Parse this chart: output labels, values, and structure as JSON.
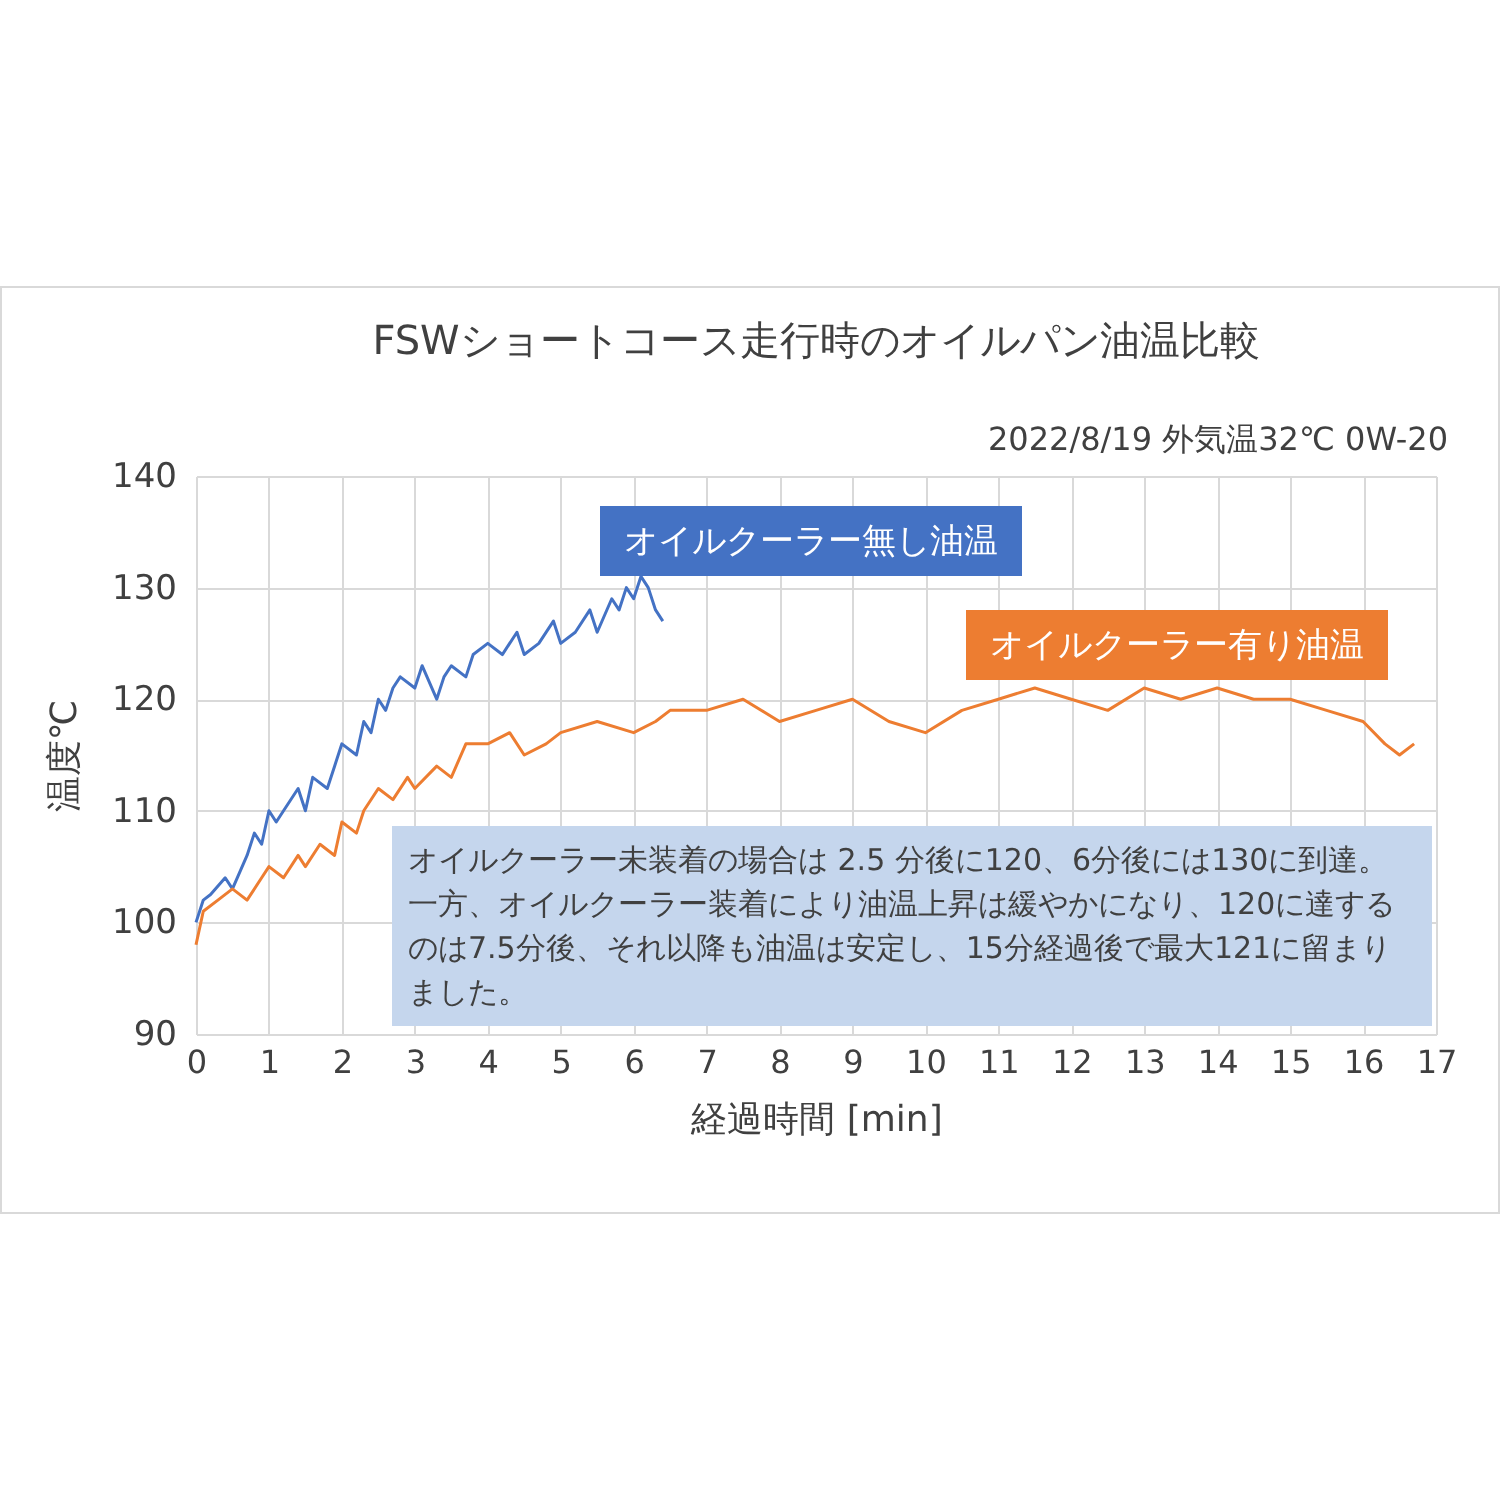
{
  "chart_data": {
    "type": "line",
    "title": "FSWショートコース走行時のオイルパン油温比較",
    "subtitle": "2022/8/19  外気温32℃  0W-20",
    "xlabel": "経過時間 [min]",
    "ylabel": "温度℃",
    "xlim": [
      0,
      17
    ],
    "xticks": [
      0,
      1,
      2,
      3,
      4,
      5,
      6,
      7,
      8,
      9,
      10,
      11,
      12,
      13,
      14,
      15,
      16,
      17
    ],
    "ylim": [
      90,
      140
    ],
    "yticks": [
      90,
      100,
      110,
      120,
      130,
      140
    ],
    "grid": true,
    "marker": "none",
    "line_style": "solid",
    "annotations": [
      "オイルクーラー未装着の場合は 2.5 分後に120、6分後には130に到達。一方、オイルクーラー装着により油温上昇は緩やかになり、120に達するのは7.5分後、それ以降も油温は安定し、15分経過後で最大121に留まりました。"
    ],
    "series": [
      {
        "name": "オイルクーラー無し油温",
        "color": "#4472c4",
        "x": [
          0,
          0.1,
          0.2,
          0.4,
          0.5,
          0.7,
          0.8,
          0.9,
          1.0,
          1.1,
          1.2,
          1.4,
          1.5,
          1.6,
          1.8,
          1.9,
          2.0,
          2.2,
          2.3,
          2.4,
          2.5,
          2.6,
          2.7,
          2.8,
          3.0,
          3.1,
          3.3,
          3.4,
          3.5,
          3.7,
          3.8,
          4.0,
          4.2,
          4.4,
          4.5,
          4.7,
          4.9,
          5.0,
          5.2,
          5.4,
          5.5,
          5.7,
          5.8,
          5.9,
          6.0,
          6.1,
          6.2,
          6.3,
          6.4
        ],
        "values": [
          100,
          102,
          102.5,
          104,
          103,
          106,
          108,
          107,
          110,
          109,
          110,
          112,
          110,
          113,
          112,
          114,
          116,
          115,
          118,
          117,
          120,
          119,
          121,
          122,
          121,
          123,
          120,
          122,
          123,
          122,
          124,
          125,
          124,
          126,
          124,
          125,
          127,
          125,
          126,
          128,
          126,
          129,
          128,
          130,
          129,
          131,
          130,
          128,
          127
        ]
      },
      {
        "name": "オイルクーラー有り油温",
        "color": "#ed7d31",
        "x": [
          0,
          0.1,
          0.3,
          0.5,
          0.7,
          0.9,
          1.0,
          1.2,
          1.4,
          1.5,
          1.7,
          1.9,
          2.0,
          2.2,
          2.3,
          2.5,
          2.7,
          2.9,
          3.0,
          3.3,
          3.5,
          3.7,
          4.0,
          4.3,
          4.5,
          4.8,
          5.0,
          5.5,
          6.0,
          6.3,
          6.5,
          7.0,
          7.5,
          8.0,
          8.5,
          9.0,
          9.5,
          10.0,
          10.5,
          11.0,
          11.5,
          12.0,
          12.5,
          13.0,
          13.5,
          14.0,
          14.5,
          15.0,
          15.5,
          16.0,
          16.3,
          16.5,
          16.7
        ],
        "values": [
          98,
          101,
          102,
          103,
          102,
          104,
          105,
          104,
          106,
          105,
          107,
          106,
          109,
          108,
          110,
          112,
          111,
          113,
          112,
          114,
          113,
          116,
          116,
          117,
          115,
          116,
          117,
          118,
          117,
          118,
          119,
          119,
          120,
          118,
          119,
          120,
          118,
          117,
          119,
          120,
          121,
          120,
          119,
          121,
          120,
          121,
          120,
          120,
          119,
          118,
          116,
          115,
          116
        ]
      }
    ]
  }
}
